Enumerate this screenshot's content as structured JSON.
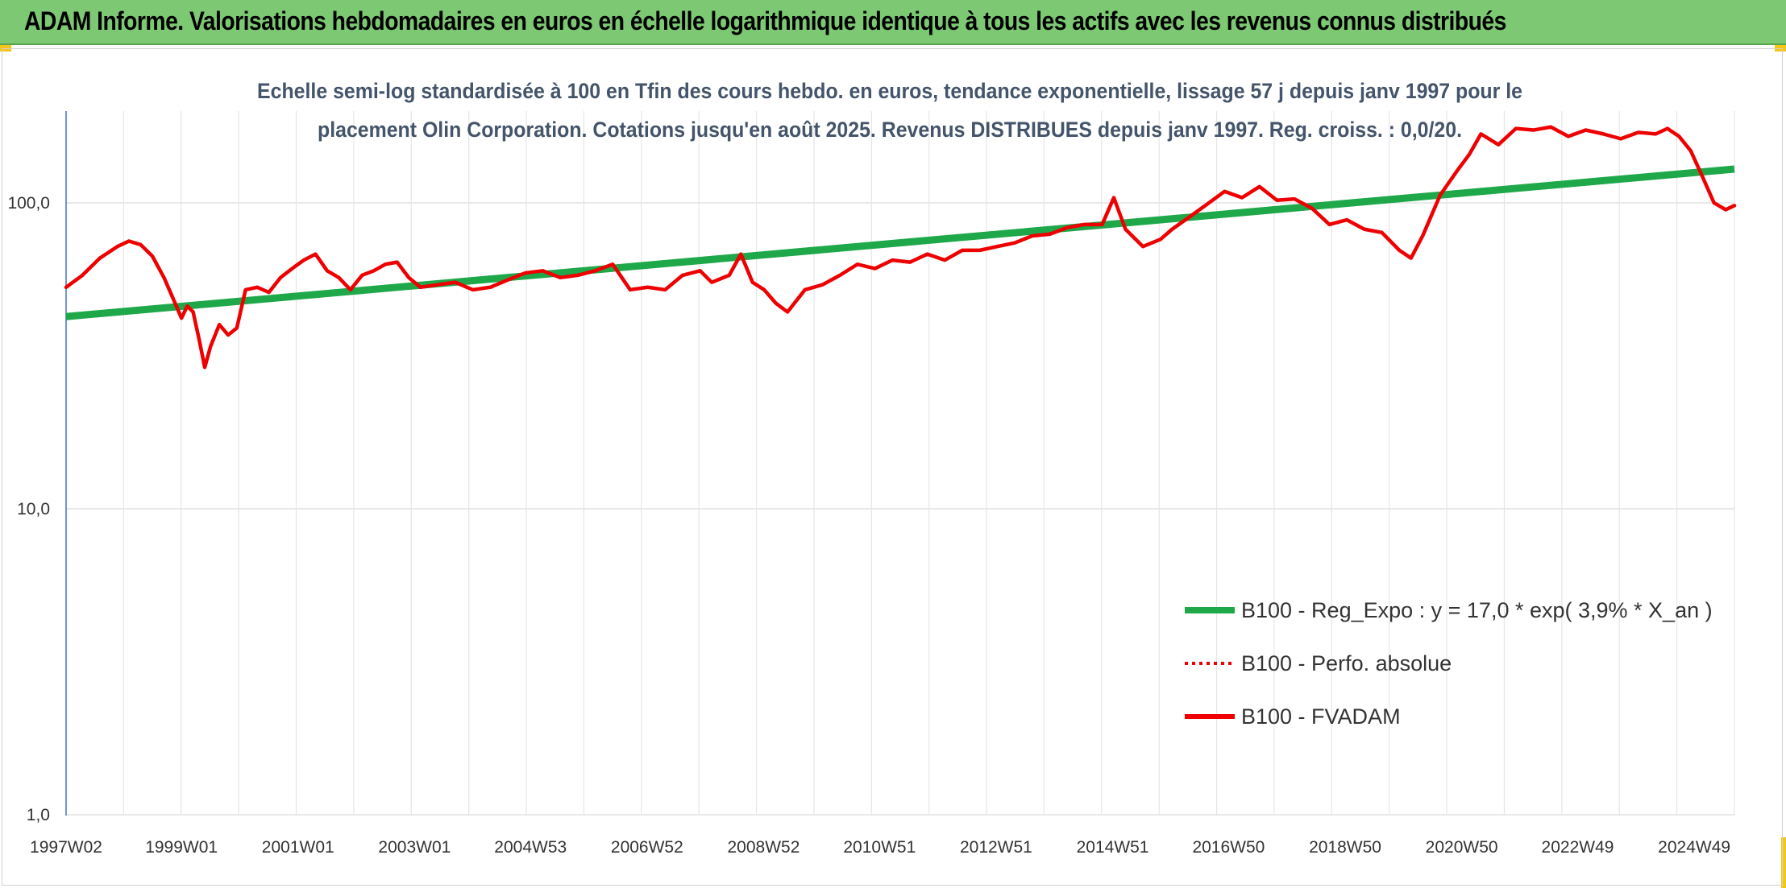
{
  "header": {
    "title": "ADAM Informe. Valorisations hebdomadaires en euros en échelle logarithmique identique à tous les actifs avec les revenus connus distribués"
  },
  "colors": {
    "banner": "#7dc873",
    "corner_accent": "#f5c518",
    "regression": "#1ea84a",
    "fvadam": "#ee0000",
    "perfo": "#ee0000",
    "grid": "#dcdcdc",
    "subtitle": "#44546a"
  },
  "chart_data": {
    "type": "line",
    "title_line1": "Echelle semi-log standardisée à 100 en Tfin des cours hebdo. en euros, tendance exponentielle, lissage 57 j depuis janv 1997 pour le",
    "title_line2": "placement  Olin Corporation.  Cotations jusqu'en août 2025. Revenus DISTRIBUES depuis janv 1997. Reg. croiss. : 0,0/20.",
    "y_scale": "log",
    "ylim": [
      1,
      200
    ],
    "y_ticks": [
      {
        "value": 100,
        "label": "100,0"
      },
      {
        "value": 10,
        "label": "10,0"
      },
      {
        "value": 1,
        "label": "1,0"
      }
    ],
    "xlim": [
      1997.02,
      2025.65
    ],
    "x_ticks": [
      {
        "value": 1997.02,
        "label": "1997W02"
      },
      {
        "value": 1999.0,
        "label": "1999W01"
      },
      {
        "value": 2001.0,
        "label": "2001W01"
      },
      {
        "value": 2003.0,
        "label": "2003W01"
      },
      {
        "value": 2004.99,
        "label": "2004W53"
      },
      {
        "value": 2006.99,
        "label": "2006W52"
      },
      {
        "value": 2008.99,
        "label": "2008W52"
      },
      {
        "value": 2010.98,
        "label": "2010W51"
      },
      {
        "value": 2012.98,
        "label": "2012W51"
      },
      {
        "value": 2014.98,
        "label": "2014W51"
      },
      {
        "value": 2016.97,
        "label": "2016W50"
      },
      {
        "value": 2018.97,
        "label": "2018W50"
      },
      {
        "value": 2020.97,
        "label": "2020W50"
      },
      {
        "value": 2022.96,
        "label": "2022W49"
      },
      {
        "value": 2024.96,
        "label": "2024W49"
      }
    ],
    "grid": true,
    "legend_position": "bottom-right",
    "legend": [
      {
        "label": "B100 - Reg_Expo : y = 17,0 * exp( 3,9% *  X_an )",
        "style": "solid-thick",
        "color": "#1ea84a"
      },
      {
        "label": "B100 - Perfo. absolue",
        "style": "dotted",
        "color": "#ee0000"
      },
      {
        "label": "B100 - FVADAM",
        "style": "solid",
        "color": "#ee0000"
      }
    ],
    "series": [
      {
        "name": "B100 - Reg_Expo : y = 17,0 * exp( 3,9% *  X_an )",
        "x": [
          1997.02,
          2025.65
        ],
        "y": [
          42.5,
          129
        ]
      },
      {
        "name": "B100 - FVADAM",
        "x": [
          1997.02,
          1997.3,
          1997.6,
          1997.9,
          1998.1,
          1998.3,
          1998.5,
          1998.7,
          1998.85,
          1999.0,
          1999.1,
          1999.2,
          1999.3,
          1999.4,
          1999.5,
          1999.65,
          1999.8,
          1999.95,
          2000.1,
          2000.3,
          2000.5,
          2000.7,
          2000.9,
          2001.1,
          2001.3,
          2001.5,
          2001.7,
          2001.9,
          2002.1,
          2002.3,
          2002.5,
          2002.7,
          2002.9,
          2003.1,
          2003.4,
          2003.7,
          2004.0,
          2004.3,
          2004.6,
          2004.9,
          2005.2,
          2005.5,
          2005.8,
          2006.1,
          2006.4,
          2006.7,
          2007.0,
          2007.3,
          2007.6,
          2007.9,
          2008.1,
          2008.4,
          2008.6,
          2008.8,
          2009.0,
          2009.2,
          2009.4,
          2009.7,
          2010.0,
          2010.3,
          2010.6,
          2010.9,
          2011.2,
          2011.5,
          2011.8,
          2012.1,
          2012.4,
          2012.7,
          2013.0,
          2013.3,
          2013.6,
          2013.9,
          2014.2,
          2014.5,
          2014.8,
          2015.0,
          2015.2,
          2015.5,
          2015.8,
          2016.0,
          2016.3,
          2016.6,
          2016.9,
          2017.2,
          2017.5,
          2017.8,
          2018.1,
          2018.4,
          2018.7,
          2019.0,
          2019.3,
          2019.6,
          2019.9,
          2020.1,
          2020.3,
          2020.6,
          2020.9,
          2021.1,
          2021.3,
          2021.6,
          2021.9,
          2022.2,
          2022.5,
          2022.8,
          2023.1,
          2023.4,
          2023.7,
          2024.0,
          2024.3,
          2024.5,
          2024.7,
          2024.9,
          2025.1,
          2025.3,
          2025.5,
          2025.65
        ],
        "y": [
          53,
          58,
          66,
          72,
          75,
          73,
          67,
          57,
          49,
          42,
          46,
          44,
          36,
          29,
          34,
          40,
          37,
          39,
          52,
          53,
          51,
          57,
          61,
          65,
          68,
          60,
          57,
          52,
          58,
          60,
          63,
          64,
          57,
          53,
          54,
          55,
          52,
          53,
          56,
          59,
          60,
          57,
          58,
          60,
          63,
          52,
          53,
          52,
          58,
          60,
          55,
          58,
          68,
          55,
          52,
          47,
          44,
          52,
          54,
          58,
          63,
          61,
          65,
          64,
          68,
          65,
          70,
          70,
          72,
          74,
          78,
          79,
          83,
          85,
          85,
          104,
          82,
          72,
          76,
          82,
          90,
          99,
          109,
          104,
          113,
          102,
          103,
          96,
          85,
          88,
          82,
          80,
          70,
          66,
          78,
          106,
          128,
          144,
          168,
          155,
          175,
          173,
          177,
          165,
          173,
          168,
          162,
          170,
          168,
          175,
          165,
          148,
          122,
          100,
          95,
          98
        ]
      }
    ]
  }
}
